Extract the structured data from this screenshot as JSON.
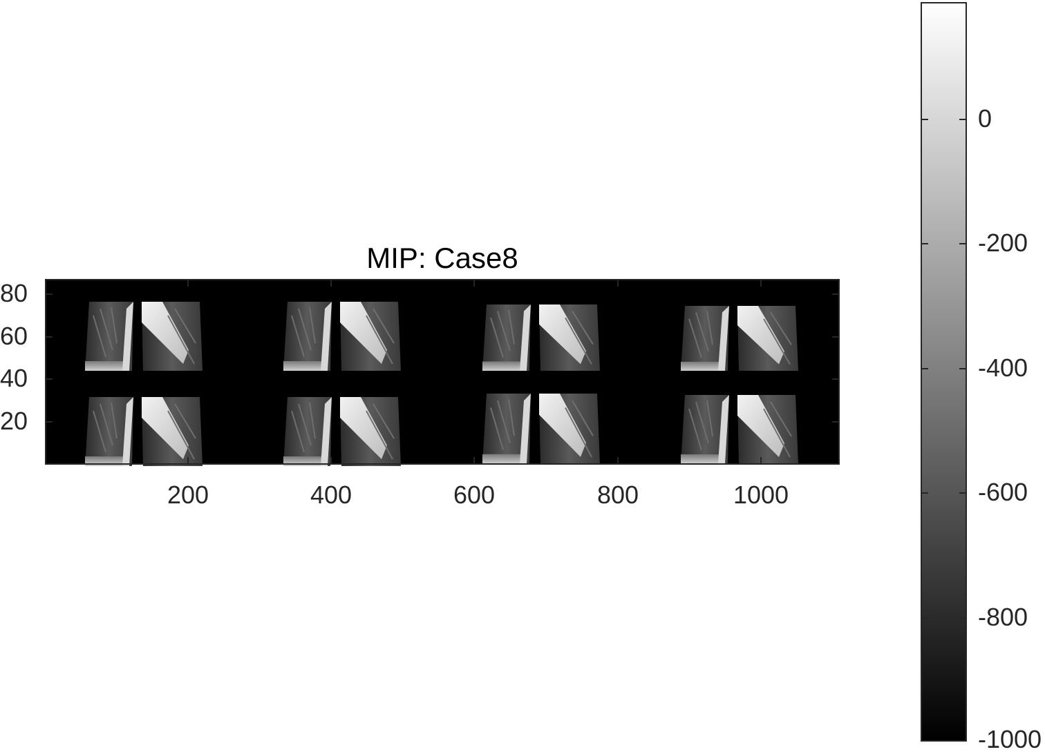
{
  "figure": {
    "title": "MIP: Case8",
    "axes": {
      "x_ticks": [
        "200",
        "400",
        "600",
        "800",
        "1000"
      ],
      "y_ticks": [
        "80",
        "60",
        "40",
        "20"
      ]
    },
    "colorbar": {
      "colormap": "gray",
      "range": [
        -1000,
        180
      ],
      "ticks": [
        "0",
        "-200",
        "-400",
        "-600",
        "-800",
        "-1000"
      ]
    },
    "image": {
      "description_colors": {
        "background": "#000000",
        "tissue_dark": "#3a3a3a",
        "tissue_light": "#9a9a9a",
        "vessel": "#e0e0e0"
      },
      "tile_rows": 2,
      "tile_cols": 4
    }
  }
}
